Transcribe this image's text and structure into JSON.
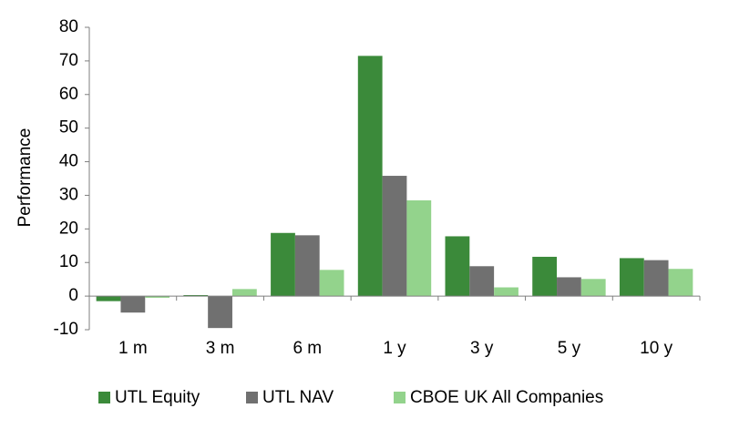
{
  "chart_data": {
    "type": "bar",
    "y_label": "Performance",
    "categories": [
      "1 m",
      "3 m",
      "6 m",
      "1 y",
      "3 y",
      "5 y",
      "10 y"
    ],
    "series": [
      {
        "name": "UTL Equity",
        "color": "#3b8a3a",
        "values": [
          -1.5,
          0.3,
          18.8,
          71.5,
          17.8,
          11.7,
          11.3
        ]
      },
      {
        "name": "UTL NAV",
        "color": "#707070",
        "values": [
          -4.9,
          -9.5,
          18.1,
          35.8,
          8.9,
          5.6,
          10.7
        ]
      },
      {
        "name": "CBOE UK All Companies",
        "color": "#93d38c",
        "values": [
          -0.5,
          2.1,
          7.8,
          28.5,
          2.6,
          5.1,
          8.1
        ]
      }
    ],
    "ylim": [
      -10,
      80
    ],
    "yticks": [
      -10,
      0,
      10,
      20,
      30,
      40,
      50,
      60,
      70,
      80
    ]
  }
}
